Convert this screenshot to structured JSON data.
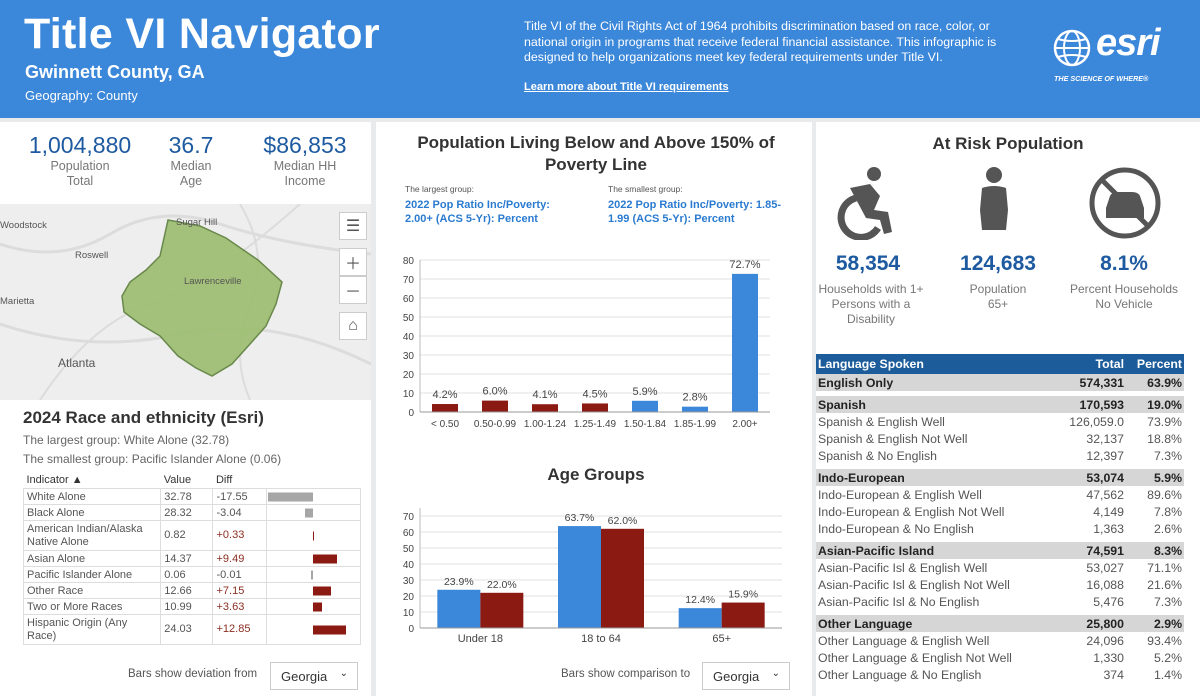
{
  "header": {
    "title": "Title VI Navigator",
    "county": "Gwinnett County, GA",
    "geography": "Geography: County",
    "description": "Title VI of the Civil Rights Act of 1964 prohibits discrimination based on race, color, or national origin in programs that receive federal financial assistance. This infographic is designed to help organizations meet key federal requirements under Title VI.",
    "link": "Learn more about Title VI requirements",
    "logo_text": "esri",
    "logo_tagline": "THE SCIENCE OF WHERE®"
  },
  "kpis": [
    {
      "value": "1,004,880",
      "label1": "Population",
      "label2": "Total"
    },
    {
      "value": "36.7",
      "label1": "Median",
      "label2": "Age"
    },
    {
      "value": "$86,853",
      "label1": "Median HH",
      "label2": "Income"
    }
  ],
  "map": {
    "labels": [
      "Woodstock",
      "Sugar Hill",
      "Roswell",
      "Lawrenceville",
      "Marietta",
      "Atlanta"
    ],
    "buttons": [
      "list-icon",
      "zoom-in-icon",
      "zoom-out-icon",
      "home-icon"
    ]
  },
  "race": {
    "title": "2024 Race and ethnicity (Esri)",
    "largest": "The largest group: White Alone (32.78)",
    "smallest": "The smallest group: Pacific Islander Alone (0.06)",
    "columns": [
      "Indicator ▲",
      "Value",
      "Diff"
    ],
    "rows": [
      {
        "indicator": "White Alone",
        "value": "32.78",
        "diff": "-17.55",
        "dev": -17.55
      },
      {
        "indicator": "Black Alone",
        "value": "28.32",
        "diff": "-3.04",
        "dev": -3.04
      },
      {
        "indicator": "American Indian/Alaska Native Alone",
        "value": "0.82",
        "diff": "+0.33",
        "dev": 0.33
      },
      {
        "indicator": "Asian Alone",
        "value": "14.37",
        "diff": "+9.49",
        "dev": 9.49
      },
      {
        "indicator": "Pacific Islander Alone",
        "value": "0.06",
        "diff": "-0.01",
        "dev": -0.01
      },
      {
        "indicator": "Other Race",
        "value": "12.66",
        "diff": "+7.15",
        "dev": 7.15
      },
      {
        "indicator": "Two or More Races",
        "value": "10.99",
        "diff": "+3.63",
        "dev": 3.63
      },
      {
        "indicator": "Hispanic Origin (Any Race)",
        "value": "24.03",
        "diff": "+12.85",
        "dev": 12.85
      }
    ],
    "select_label": "Bars show deviation from",
    "select_value": "Georgia"
  },
  "poverty": {
    "title_line1": "Population Living Below and Above 150% of",
    "title_line2": "Poverty Line",
    "largest_caption": "The largest group:",
    "largest_desc_line1": "2022 Pop Ratio Inc/Poverty:",
    "largest_desc_line2": "2.00+ (ACS 5-Yr): Percent",
    "smallest_caption": "The smallest group:",
    "smallest_desc_line1": "2022 Pop Ratio Inc/Poverty: 1.85-",
    "smallest_desc_line2": "1.99 (ACS 5-Yr): Percent"
  },
  "age": {
    "title": "Age Groups",
    "select_label": "Bars show comparison to",
    "select_value": "Georgia"
  },
  "chart_data": [
    {
      "type": "bar",
      "title": "Population Living Below and Above 150% of Poverty Line",
      "categories": [
        "< 0.50",
        "0.50-0.99",
        "1.00-1.24",
        "1.25-1.49",
        "1.50-1.84",
        "1.85-1.99",
        "2.00+"
      ],
      "values": [
        4.2,
        6.0,
        4.1,
        4.5,
        5.9,
        2.8,
        72.7
      ],
      "labels": [
        "4.2%",
        "6.0%",
        "4.1%",
        "4.5%",
        "5.9%",
        "2.8%",
        "72.7%"
      ],
      "colors": [
        "#8b1a12",
        "#8b1a12",
        "#8b1a12",
        "#8b1a12",
        "#3b87d9",
        "#3b87d9",
        "#3b87d9"
      ],
      "yticks": [
        0,
        10,
        20,
        30,
        40,
        50,
        60,
        70,
        80
      ],
      "ylim": [
        0,
        80
      ],
      "grid": true
    },
    {
      "type": "bar",
      "title": "Age Groups",
      "categories": [
        "Under 18",
        "18 to 64",
        "65+"
      ],
      "series": [
        {
          "values": [
            23.9,
            63.7,
            12.4
          ],
          "labels": [
            "23.9%",
            "63.7%",
            "12.4%"
          ],
          "color": "#3b87d9"
        },
        {
          "values": [
            22.0,
            62.0,
            15.9
          ],
          "labels": [
            "22.0%",
            "62.0%",
            "15.9%"
          ],
          "color": "#8b1a12"
        }
      ],
      "yticks": [
        0,
        10,
        20,
        30,
        40,
        50,
        60,
        70
      ],
      "ylim": [
        0,
        75
      ],
      "grid": true
    }
  ],
  "at_risk": {
    "title": "At Risk Population",
    "items": [
      {
        "icon": "accessibility-icon",
        "value": "58,354",
        "label1": "Households with 1+",
        "label2": "Persons with a",
        "label3": "Disability"
      },
      {
        "icon": "person-icon",
        "value": "124,683",
        "label1": "Population",
        "label2": "65+",
        "label3": ""
      },
      {
        "icon": "no-car-icon",
        "value": "8.1%",
        "label1": "Percent Households",
        "label2": "No Vehicle",
        "label3": ""
      }
    ]
  },
  "language": {
    "headers": [
      "Language Spoken",
      "Total",
      "Percent"
    ],
    "groups": [
      {
        "name": "English Only",
        "total": "574,331",
        "percent": "63.9%",
        "rows": []
      },
      {
        "name": "Spanish",
        "total": "170,593",
        "percent": "19.0%",
        "rows": [
          {
            "name": "Spanish & English Well",
            "total": "126,059.0",
            "percent": "73.9%"
          },
          {
            "name": "Spanish & English Not Well",
            "total": "32,137",
            "percent": "18.8%"
          },
          {
            "name": "Spanish & No English",
            "total": "12,397",
            "percent": "7.3%"
          }
        ]
      },
      {
        "name": "Indo-European",
        "total": "53,074",
        "percent": "5.9%",
        "rows": [
          {
            "name": "Indo-European & English Well",
            "total": "47,562",
            "percent": "89.6%"
          },
          {
            "name": "Indo-European & English Not Well",
            "total": "4,149",
            "percent": "7.8%"
          },
          {
            "name": "Indo-European & No English",
            "total": "1,363",
            "percent": "2.6%"
          }
        ]
      },
      {
        "name": "Asian-Pacific Island",
        "total": "74,591",
        "percent": "8.3%",
        "rows": [
          {
            "name": "Asian-Pacific Isl & English Well",
            "total": "53,027",
            "percent": "71.1%"
          },
          {
            "name": "Asian-Pacific Isl & English Not Well",
            "total": "16,088",
            "percent": "21.6%"
          },
          {
            "name": "Asian-Pacific Isl & No English",
            "total": "5,476",
            "percent": "7.3%"
          }
        ]
      },
      {
        "name": "Other Language",
        "total": "25,800",
        "percent": "2.9%",
        "rows": [
          {
            "name": "Other Language & English Well",
            "total": "24,096",
            "percent": "93.4%"
          },
          {
            "name": "Other Language & English Not Well",
            "total": "1,330",
            "percent": "5.2%"
          },
          {
            "name": "Other Language & No English",
            "total": "374",
            "percent": "1.4%"
          }
        ]
      }
    ]
  }
}
